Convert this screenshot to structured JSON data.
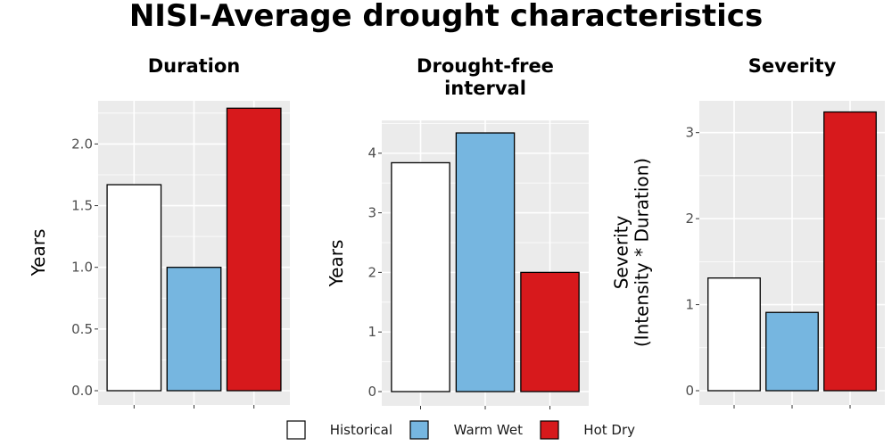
{
  "title": "NISI-Average drought characteristics",
  "colors": {
    "Historical": "#ffffff",
    "Warm Wet": "#76b6e0",
    "Hot Dry": "#d7191c",
    "panel_background": "#ebebeb",
    "grid": "#ffffff",
    "bar_outline": "#000000"
  },
  "legend": {
    "position": "bottom",
    "items": [
      {
        "label": "Historical",
        "color": "#ffffff"
      },
      {
        "label": "Warm Wet",
        "color": "#76b6e0"
      },
      {
        "label": "Hot Dry",
        "color": "#d7191c"
      }
    ]
  },
  "chart_data": [
    {
      "type": "bar",
      "title": "Duration",
      "ylabel": "Years",
      "categories": [
        "Historical",
        "Warm Wet",
        "Hot Dry"
      ],
      "values": [
        1.67,
        1.0,
        2.29
      ],
      "ylim": [
        0,
        2.35
      ],
      "yticks": [
        0,
        0.5,
        1.0,
        1.5,
        2.0
      ],
      "ytick_labels": [
        "0.0",
        "0.5",
        "1.0",
        "1.5",
        "2.0"
      ],
      "grid": true
    },
    {
      "type": "bar",
      "title": "Drought-free\ninterval",
      "ylabel": "Years",
      "categories": [
        "Historical",
        "Warm Wet",
        "Hot Dry"
      ],
      "values": [
        3.84,
        4.34,
        2.0
      ],
      "ylim": [
        0,
        4.55
      ],
      "yticks": [
        0,
        1,
        2,
        3,
        4
      ],
      "ytick_labels": [
        "0",
        "1",
        "2",
        "3",
        "4"
      ],
      "grid": true
    },
    {
      "type": "bar",
      "title": "Severity",
      "ylabel": "Severity\n(Intensity * Duration)",
      "categories": [
        "Historical",
        "Warm Wet",
        "Hot Dry"
      ],
      "values": [
        1.31,
        0.91,
        3.24
      ],
      "ylim": [
        0,
        3.37
      ],
      "yticks": [
        0,
        1,
        2,
        3
      ],
      "ytick_labels": [
        "0",
        "1",
        "2",
        "3"
      ],
      "grid": true
    }
  ]
}
